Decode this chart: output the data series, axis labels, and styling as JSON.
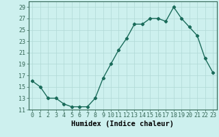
{
  "xlabel": "Humidex (Indice chaleur)",
  "x": [
    0,
    1,
    2,
    3,
    4,
    5,
    6,
    7,
    8,
    9,
    10,
    11,
    12,
    13,
    14,
    15,
    16,
    17,
    18,
    19,
    20,
    21,
    22,
    23
  ],
  "y": [
    16,
    15,
    13,
    13,
    12,
    11.5,
    11.5,
    11.5,
    13,
    16.5,
    19,
    21.5,
    23.5,
    26,
    26,
    27,
    27,
    26.5,
    29,
    27,
    25.5,
    24,
    20,
    17.5
  ],
  "line_color": "#1a6b5a",
  "marker": "D",
  "marker_size": 2.2,
  "background_color": "#cdf0ee",
  "grid_color": "#b0d8d5",
  "ylim": [
    11,
    30
  ],
  "yticks": [
    11,
    13,
    15,
    17,
    19,
    21,
    23,
    25,
    27,
    29
  ],
  "xticks": [
    0,
    1,
    2,
    3,
    4,
    5,
    6,
    7,
    8,
    9,
    10,
    11,
    12,
    13,
    14,
    15,
    16,
    17,
    18,
    19,
    20,
    21,
    22,
    23
  ],
  "tick_fontsize": 6,
  "xlabel_fontsize": 7.5,
  "line_width": 1.0
}
